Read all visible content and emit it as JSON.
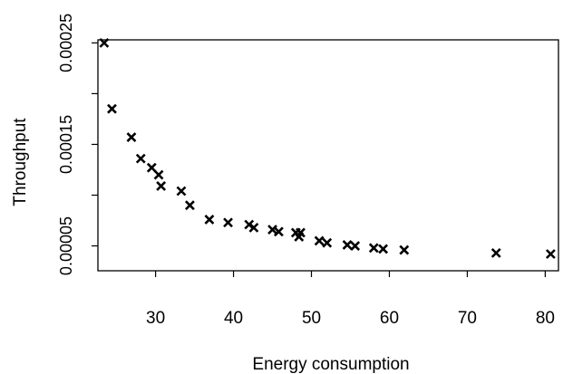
{
  "chart_data": {
    "type": "scatter",
    "title": "",
    "xlabel": "Energy consumption",
    "ylabel": "Throughput",
    "xlim": [
      22.6,
      81.7
    ],
    "ylim": [
      2.55e-05,
      0.000253
    ],
    "x_ticks": [
      30,
      40,
      50,
      60,
      70,
      80
    ],
    "x_tick_labels": [
      "30",
      "40",
      "50",
      "60",
      "70",
      "80"
    ],
    "y_ticks": [
      5e-05,
      0.00015,
      0.00025
    ],
    "y_tick_labels": [
      "0.00005",
      "0.00015",
      "0.00025"
    ],
    "y_minor_ticks": [
      0.0001,
      0.0002
    ],
    "marker": "x",
    "grid": false,
    "legend": "none",
    "series": [
      {
        "color": "#000000",
        "points": [
          {
            "x": 23.4,
            "y": 0.00025
          },
          {
            "x": 24.4,
            "y": 0.000185
          },
          {
            "x": 26.9,
            "y": 0.000157
          },
          {
            "x": 28.1,
            "y": 0.000136
          },
          {
            "x": 29.5,
            "y": 0.000127
          },
          {
            "x": 30.4,
            "y": 0.00012
          },
          {
            "x": 30.7,
            "y": 0.000109
          },
          {
            "x": 33.3,
            "y": 0.000104
          },
          {
            "x": 34.4,
            "y": 9e-05
          },
          {
            "x": 36.9,
            "y": 7.6e-05
          },
          {
            "x": 39.3,
            "y": 7.3e-05
          },
          {
            "x": 42.0,
            "y": 7.1e-05
          },
          {
            "x": 42.6,
            "y": 6.8e-05
          },
          {
            "x": 45.0,
            "y": 6.6e-05
          },
          {
            "x": 45.8,
            "y": 6.4e-05
          },
          {
            "x": 48.0,
            "y": 6.3e-05
          },
          {
            "x": 48.6,
            "y": 6.3e-05
          },
          {
            "x": 48.4,
            "y": 5.9e-05
          },
          {
            "x": 51.0,
            "y": 5.5e-05
          },
          {
            "x": 52.0,
            "y": 5.3e-05
          },
          {
            "x": 54.6,
            "y": 5.1e-05
          },
          {
            "x": 55.6,
            "y": 5e-05
          },
          {
            "x": 58.0,
            "y": 4.8e-05
          },
          {
            "x": 59.2,
            "y": 4.7e-05
          },
          {
            "x": 61.9,
            "y": 4.6e-05
          },
          {
            "x": 73.7,
            "y": 4.3e-05
          },
          {
            "x": 80.7,
            "y": 4.2e-05
          }
        ]
      }
    ]
  }
}
